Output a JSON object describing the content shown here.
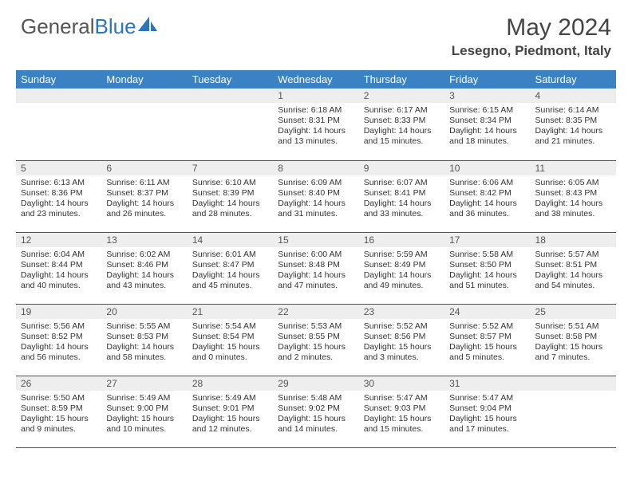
{
  "logo": {
    "text_gray": "General",
    "text_blue": "Blue"
  },
  "title": "May 2024",
  "location": "Lesegno, Piedmont, Italy",
  "colors": {
    "header_bg": "#3b82c4",
    "header_text": "#ffffff",
    "daynum_bg": "#eeeeee",
    "row_border": "#2a5a8a",
    "logo_blue": "#2a75bb",
    "text": "#333333"
  },
  "day_headers": [
    "Sunday",
    "Monday",
    "Tuesday",
    "Wednesday",
    "Thursday",
    "Friday",
    "Saturday"
  ],
  "weeks": [
    [
      null,
      null,
      null,
      {
        "n": "1",
        "sr": "6:18 AM",
        "ss": "8:31 PM",
        "dl1": "14 hours",
        "dl2": "and 13 minutes."
      },
      {
        "n": "2",
        "sr": "6:17 AM",
        "ss": "8:33 PM",
        "dl1": "14 hours",
        "dl2": "and 15 minutes."
      },
      {
        "n": "3",
        "sr": "6:15 AM",
        "ss": "8:34 PM",
        "dl1": "14 hours",
        "dl2": "and 18 minutes."
      },
      {
        "n": "4",
        "sr": "6:14 AM",
        "ss": "8:35 PM",
        "dl1": "14 hours",
        "dl2": "and 21 minutes."
      }
    ],
    [
      {
        "n": "5",
        "sr": "6:13 AM",
        "ss": "8:36 PM",
        "dl1": "14 hours",
        "dl2": "and 23 minutes."
      },
      {
        "n": "6",
        "sr": "6:11 AM",
        "ss": "8:37 PM",
        "dl1": "14 hours",
        "dl2": "and 26 minutes."
      },
      {
        "n": "7",
        "sr": "6:10 AM",
        "ss": "8:39 PM",
        "dl1": "14 hours",
        "dl2": "and 28 minutes."
      },
      {
        "n": "8",
        "sr": "6:09 AM",
        "ss": "8:40 PM",
        "dl1": "14 hours",
        "dl2": "and 31 minutes."
      },
      {
        "n": "9",
        "sr": "6:07 AM",
        "ss": "8:41 PM",
        "dl1": "14 hours",
        "dl2": "and 33 minutes."
      },
      {
        "n": "10",
        "sr": "6:06 AM",
        "ss": "8:42 PM",
        "dl1": "14 hours",
        "dl2": "and 36 minutes."
      },
      {
        "n": "11",
        "sr": "6:05 AM",
        "ss": "8:43 PM",
        "dl1": "14 hours",
        "dl2": "and 38 minutes."
      }
    ],
    [
      {
        "n": "12",
        "sr": "6:04 AM",
        "ss": "8:44 PM",
        "dl1": "14 hours",
        "dl2": "and 40 minutes."
      },
      {
        "n": "13",
        "sr": "6:02 AM",
        "ss": "8:46 PM",
        "dl1": "14 hours",
        "dl2": "and 43 minutes."
      },
      {
        "n": "14",
        "sr": "6:01 AM",
        "ss": "8:47 PM",
        "dl1": "14 hours",
        "dl2": "and 45 minutes."
      },
      {
        "n": "15",
        "sr": "6:00 AM",
        "ss": "8:48 PM",
        "dl1": "14 hours",
        "dl2": "and 47 minutes."
      },
      {
        "n": "16",
        "sr": "5:59 AM",
        "ss": "8:49 PM",
        "dl1": "14 hours",
        "dl2": "and 49 minutes."
      },
      {
        "n": "17",
        "sr": "5:58 AM",
        "ss": "8:50 PM",
        "dl1": "14 hours",
        "dl2": "and 51 minutes."
      },
      {
        "n": "18",
        "sr": "5:57 AM",
        "ss": "8:51 PM",
        "dl1": "14 hours",
        "dl2": "and 54 minutes."
      }
    ],
    [
      {
        "n": "19",
        "sr": "5:56 AM",
        "ss": "8:52 PM",
        "dl1": "14 hours",
        "dl2": "and 56 minutes."
      },
      {
        "n": "20",
        "sr": "5:55 AM",
        "ss": "8:53 PM",
        "dl1": "14 hours",
        "dl2": "and 58 minutes."
      },
      {
        "n": "21",
        "sr": "5:54 AM",
        "ss": "8:54 PM",
        "dl1": "15 hours",
        "dl2": "and 0 minutes."
      },
      {
        "n": "22",
        "sr": "5:53 AM",
        "ss": "8:55 PM",
        "dl1": "15 hours",
        "dl2": "and 2 minutes."
      },
      {
        "n": "23",
        "sr": "5:52 AM",
        "ss": "8:56 PM",
        "dl1": "15 hours",
        "dl2": "and 3 minutes."
      },
      {
        "n": "24",
        "sr": "5:52 AM",
        "ss": "8:57 PM",
        "dl1": "15 hours",
        "dl2": "and 5 minutes."
      },
      {
        "n": "25",
        "sr": "5:51 AM",
        "ss": "8:58 PM",
        "dl1": "15 hours",
        "dl2": "and 7 minutes."
      }
    ],
    [
      {
        "n": "26",
        "sr": "5:50 AM",
        "ss": "8:59 PM",
        "dl1": "15 hours",
        "dl2": "and 9 minutes."
      },
      {
        "n": "27",
        "sr": "5:49 AM",
        "ss": "9:00 PM",
        "dl1": "15 hours",
        "dl2": "and 10 minutes."
      },
      {
        "n": "28",
        "sr": "5:49 AM",
        "ss": "9:01 PM",
        "dl1": "15 hours",
        "dl2": "and 12 minutes."
      },
      {
        "n": "29",
        "sr": "5:48 AM",
        "ss": "9:02 PM",
        "dl1": "15 hours",
        "dl2": "and 14 minutes."
      },
      {
        "n": "30",
        "sr": "5:47 AM",
        "ss": "9:03 PM",
        "dl1": "15 hours",
        "dl2": "and 15 minutes."
      },
      {
        "n": "31",
        "sr": "5:47 AM",
        "ss": "9:04 PM",
        "dl1": "15 hours",
        "dl2": "and 17 minutes."
      },
      null
    ]
  ],
  "labels": {
    "sunrise": "Sunrise: ",
    "sunset": "Sunset: ",
    "daylight": "Daylight: "
  }
}
